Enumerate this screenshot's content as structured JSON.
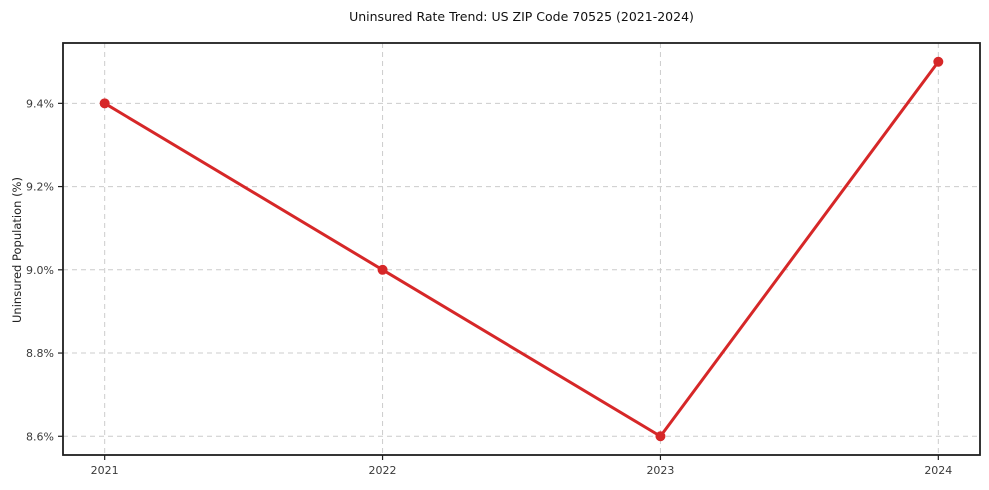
{
  "chart_data": {
    "type": "line",
    "title": "Uninsured Rate Trend: US ZIP Code 70525 (2021-2024)",
    "xlabel": "",
    "ylabel": "Uninsured Population (%)",
    "x": [
      2021,
      2022,
      2023,
      2024
    ],
    "x_tick_labels": [
      "2021",
      "2022",
      "2023",
      "2024"
    ],
    "series": [
      {
        "name": "uninsured-rate",
        "values": [
          9.4,
          9.0,
          8.6,
          9.5
        ]
      }
    ],
    "y_ticks": [
      8.6,
      8.8,
      9.0,
      9.2,
      9.4
    ],
    "y_tick_labels": [
      "8.6%",
      "8.8%",
      "9.0%",
      "9.2%",
      "9.4%"
    ],
    "xlim": [
      2020.85,
      2024.15
    ],
    "ylim": [
      8.555,
      9.545
    ],
    "grid": true,
    "grid_style": "dashed",
    "legend_position": "none",
    "colors": {
      "line": "#d62728",
      "marker": "#d62728",
      "grid": "#cccccc",
      "spine": "#1f1f1f",
      "tick_label": "#3a3a3a",
      "title": "#111111",
      "background": "#ffffff"
    }
  }
}
